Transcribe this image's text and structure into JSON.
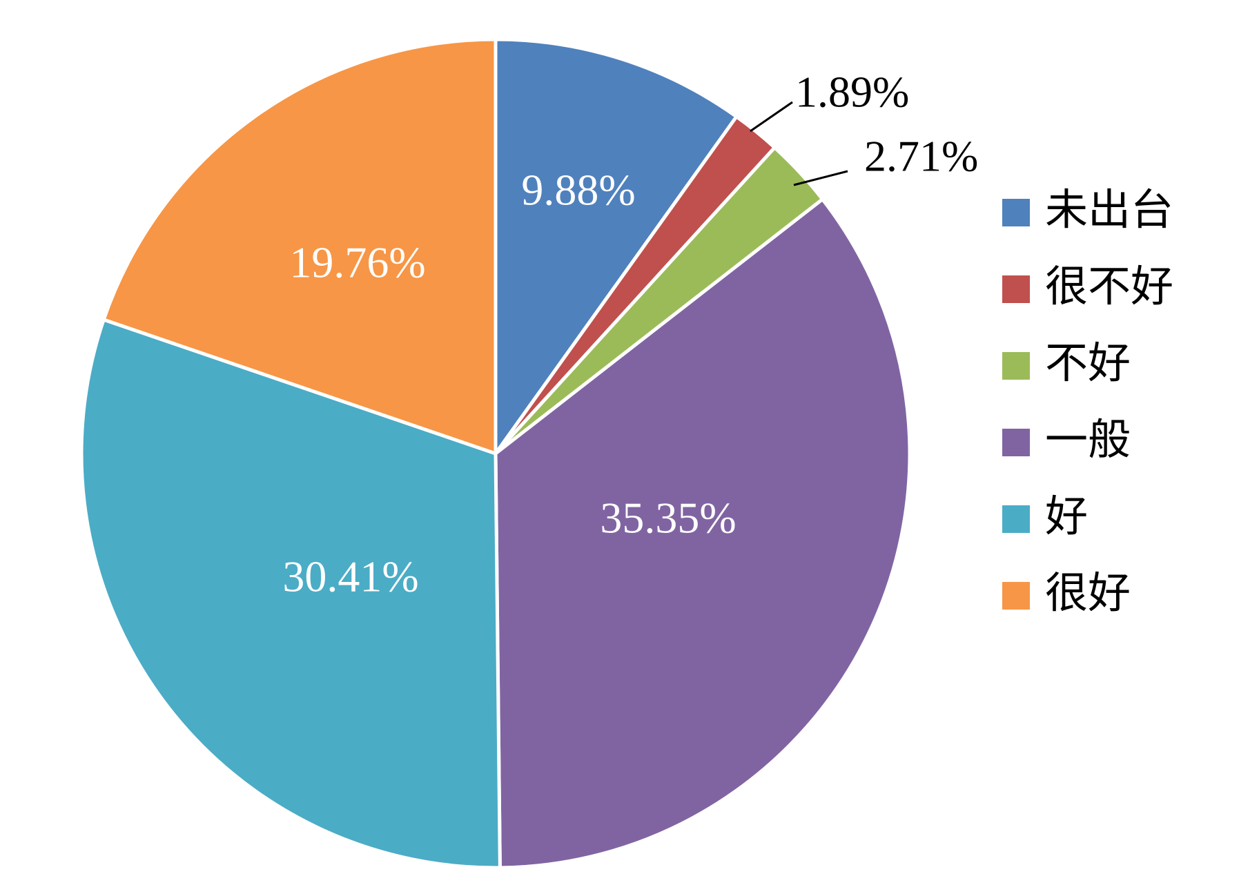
{
  "chart_data": {
    "type": "pie",
    "labels": [
      "未出台",
      "很不好",
      "不好",
      "一般",
      "好",
      "很好"
    ],
    "values": [
      9.88,
      1.89,
      2.71,
      35.35,
      30.41,
      19.76
    ],
    "value_labels": [
      "9.88%",
      "1.89%",
      "2.71%",
      "35.35%",
      "30.41%",
      "19.76%"
    ],
    "colors": [
      "#4F81BD",
      "#C0504D",
      "#9BBB59",
      "#8064A2",
      "#4BACC6",
      "#F79646"
    ],
    "label_colors": [
      "#ffffff",
      "#000000",
      "#000000",
      "#ffffff",
      "#ffffff",
      "#ffffff"
    ],
    "start_angle_deg": 0,
    "direction": "clockwise",
    "legend_position": "right"
  }
}
